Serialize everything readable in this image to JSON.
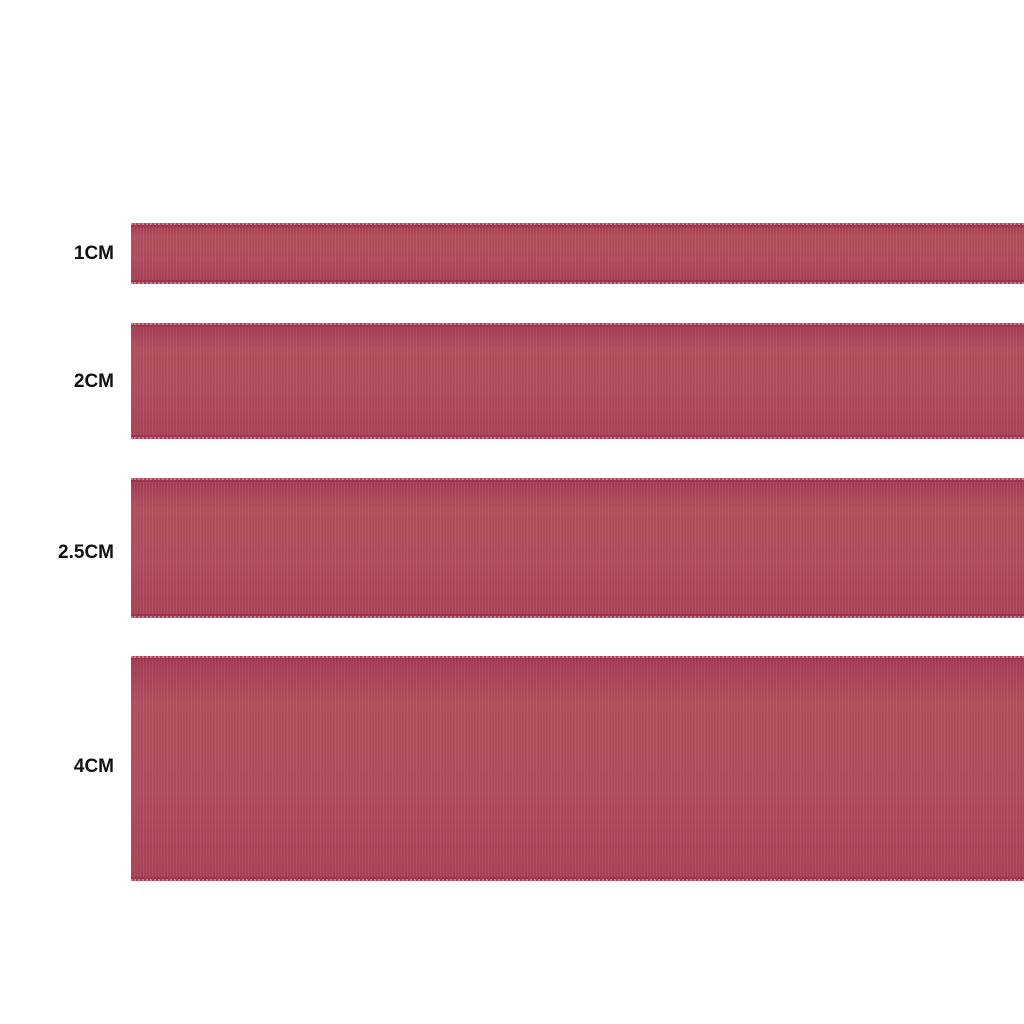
{
  "ribbon_color": "#b04a5e",
  "ribbons": [
    {
      "label": "1CM"
    },
    {
      "label": "2CM"
    },
    {
      "label": "2.5CM"
    },
    {
      "label": "4CM"
    }
  ]
}
